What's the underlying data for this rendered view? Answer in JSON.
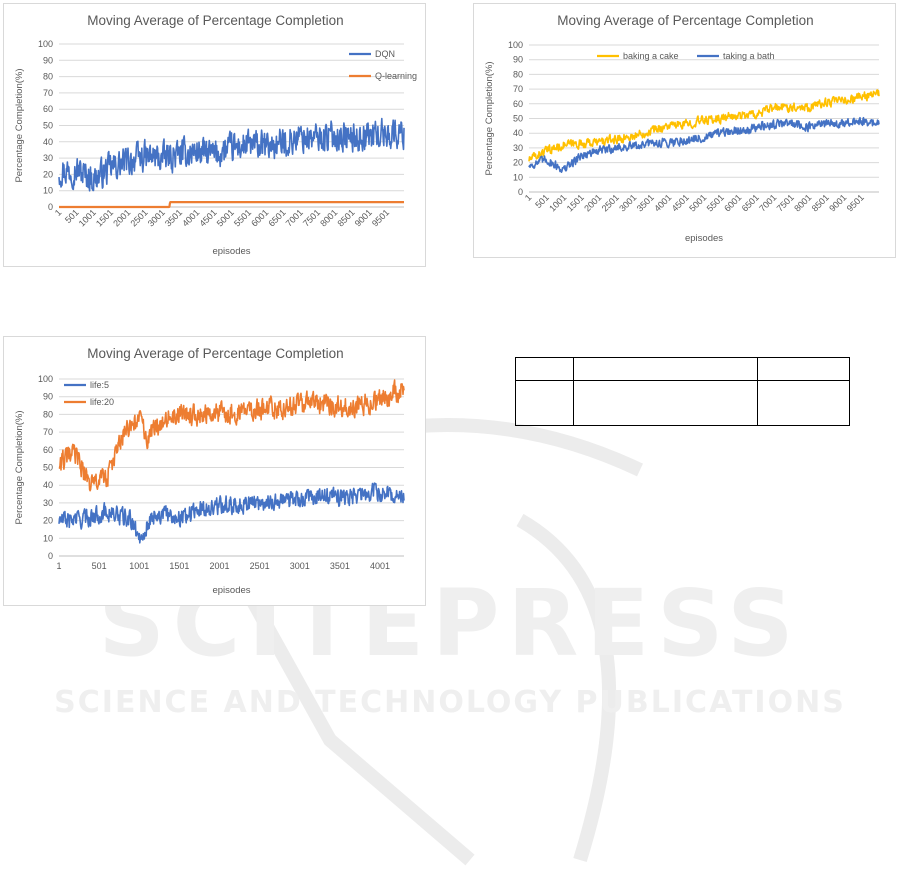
{
  "watermark": {
    "title": "SCITEPRESS",
    "subtitle": "SCIENCE AND TECHNOLOGY PUBLICATIONS"
  },
  "colors": {
    "blue": "#4472c4",
    "orange": "#ed7d31",
    "gold": "#ffc000",
    "grid": "#d9d9d9",
    "text": "#595959"
  },
  "chart_data": [
    {
      "type": "line",
      "title": "Moving Average of Percentage Completion",
      "xlabel": "episodes",
      "ylabel": "Percentage Completion(%)",
      "ylim": [
        0,
        100
      ],
      "yticks": [
        0,
        10,
        20,
        30,
        40,
        50,
        60,
        70,
        80,
        90,
        100
      ],
      "xlim": [
        1,
        10000
      ],
      "xticks": [
        "1",
        "501",
        "1001",
        "1501",
        "2001",
        "2501",
        "3001",
        "3501",
        "4001",
        "4501",
        "5001",
        "5501",
        "6001",
        "6501",
        "7001",
        "7501",
        "8001",
        "8501",
        "9001",
        "9501"
      ],
      "grid": true,
      "legend": "top-right",
      "series": [
        {
          "name": "DQN",
          "color": "#4472c4",
          "x": [
            1,
            500,
            1000,
            1500,
            2000,
            2500,
            3000,
            3500,
            4000,
            4500,
            5000,
            5500,
            6000,
            6500,
            7000,
            7500,
            8000,
            8500,
            9000,
            9500,
            10000
          ],
          "y": [
            22,
            23,
            17,
            24,
            28,
            31,
            30,
            32,
            34,
            32,
            36,
            38,
            37,
            39,
            43,
            42,
            44,
            42,
            44,
            45,
            45
          ],
          "noise": 9
        },
        {
          "name": "Q-learning",
          "color": "#ed7d31",
          "x": [
            1,
            3200,
            3220,
            10000
          ],
          "y": [
            0,
            0,
            3,
            3
          ],
          "noise": 0
        }
      ]
    },
    {
      "type": "line",
      "title": "Moving Average of Percentage Completion",
      "xlabel": "episodes",
      "ylabel": "Percentage Completion(%)",
      "ylim": [
        0,
        100
      ],
      "yticks": [
        0,
        10,
        20,
        30,
        40,
        50,
        60,
        70,
        80,
        90,
        100
      ],
      "xlim": [
        1,
        10000
      ],
      "xticks": [
        "1",
        "501",
        "1001",
        "1501",
        "2001",
        "2501",
        "3001",
        "3501",
        "4001",
        "4501",
        "5001",
        "5501",
        "6001",
        "6501",
        "7001",
        "7501",
        "8001",
        "8501",
        "9001",
        "9501"
      ],
      "grid": true,
      "legend": "top",
      "series": [
        {
          "name": "baking a cake",
          "color": "#ffc000",
          "x": [
            1,
            500,
            1000,
            1500,
            2000,
            2500,
            3000,
            3500,
            4000,
            4500,
            5000,
            5500,
            6000,
            6500,
            7000,
            7500,
            8000,
            8500,
            9000,
            9500,
            10000
          ],
          "y": [
            22,
            28,
            32,
            33,
            34,
            36,
            38,
            42,
            45,
            46,
            49,
            50,
            52,
            53,
            57,
            58,
            58,
            61,
            62,
            65,
            67
          ],
          "noise": 3
        },
        {
          "name": "taking a bath",
          "color": "#4472c4",
          "x": [
            1,
            500,
            1000,
            1500,
            2000,
            2500,
            3000,
            3500,
            4000,
            4500,
            5000,
            5500,
            6000,
            6500,
            7000,
            7500,
            8000,
            8500,
            9000,
            9500,
            10000
          ],
          "y": [
            18,
            22,
            15,
            25,
            28,
            30,
            31,
            33,
            34,
            35,
            37,
            40,
            42,
            44,
            46,
            47,
            44,
            47,
            46,
            48,
            47
          ],
          "noise": 3
        }
      ]
    },
    {
      "type": "line",
      "title": "Moving Average of Percentage Completion",
      "xlabel": "episodes",
      "ylabel": "Percentage Completion(%)",
      "ylim": [
        0,
        100
      ],
      "yticks": [
        0,
        10,
        20,
        30,
        40,
        50,
        60,
        70,
        80,
        90,
        100
      ],
      "xlim": [
        1,
        4300
      ],
      "xticks": [
        "1",
        "501",
        "1001",
        "1501",
        "2001",
        "2501",
        "3001",
        "3501",
        "4001"
      ],
      "grid": true,
      "legend": "top-left",
      "series": [
        {
          "name": "life:5",
          "color": "#4472c4",
          "x": [
            1,
            300,
            600,
            900,
            1000,
            1200,
            1500,
            1800,
            2100,
            2400,
            2700,
            3000,
            3300,
            3600,
            3900,
            4300
          ],
          "y": [
            20,
            21,
            25,
            20,
            10,
            24,
            22,
            27,
            29,
            30,
            31,
            32,
            34,
            33,
            36,
            34
          ],
          "noise": 5
        },
        {
          "name": "life:20",
          "color": "#ed7d31",
          "x": [
            1,
            200,
            400,
            600,
            800,
            1000,
            1100,
            1300,
            1600,
            2000,
            2400,
            2800,
            3200,
            3600,
            4000,
            4300
          ],
          "y": [
            52,
            58,
            40,
            45,
            68,
            78,
            66,
            78,
            80,
            80,
            82,
            84,
            87,
            84,
            88,
            95
          ],
          "noise": 6
        }
      ]
    }
  ]
}
